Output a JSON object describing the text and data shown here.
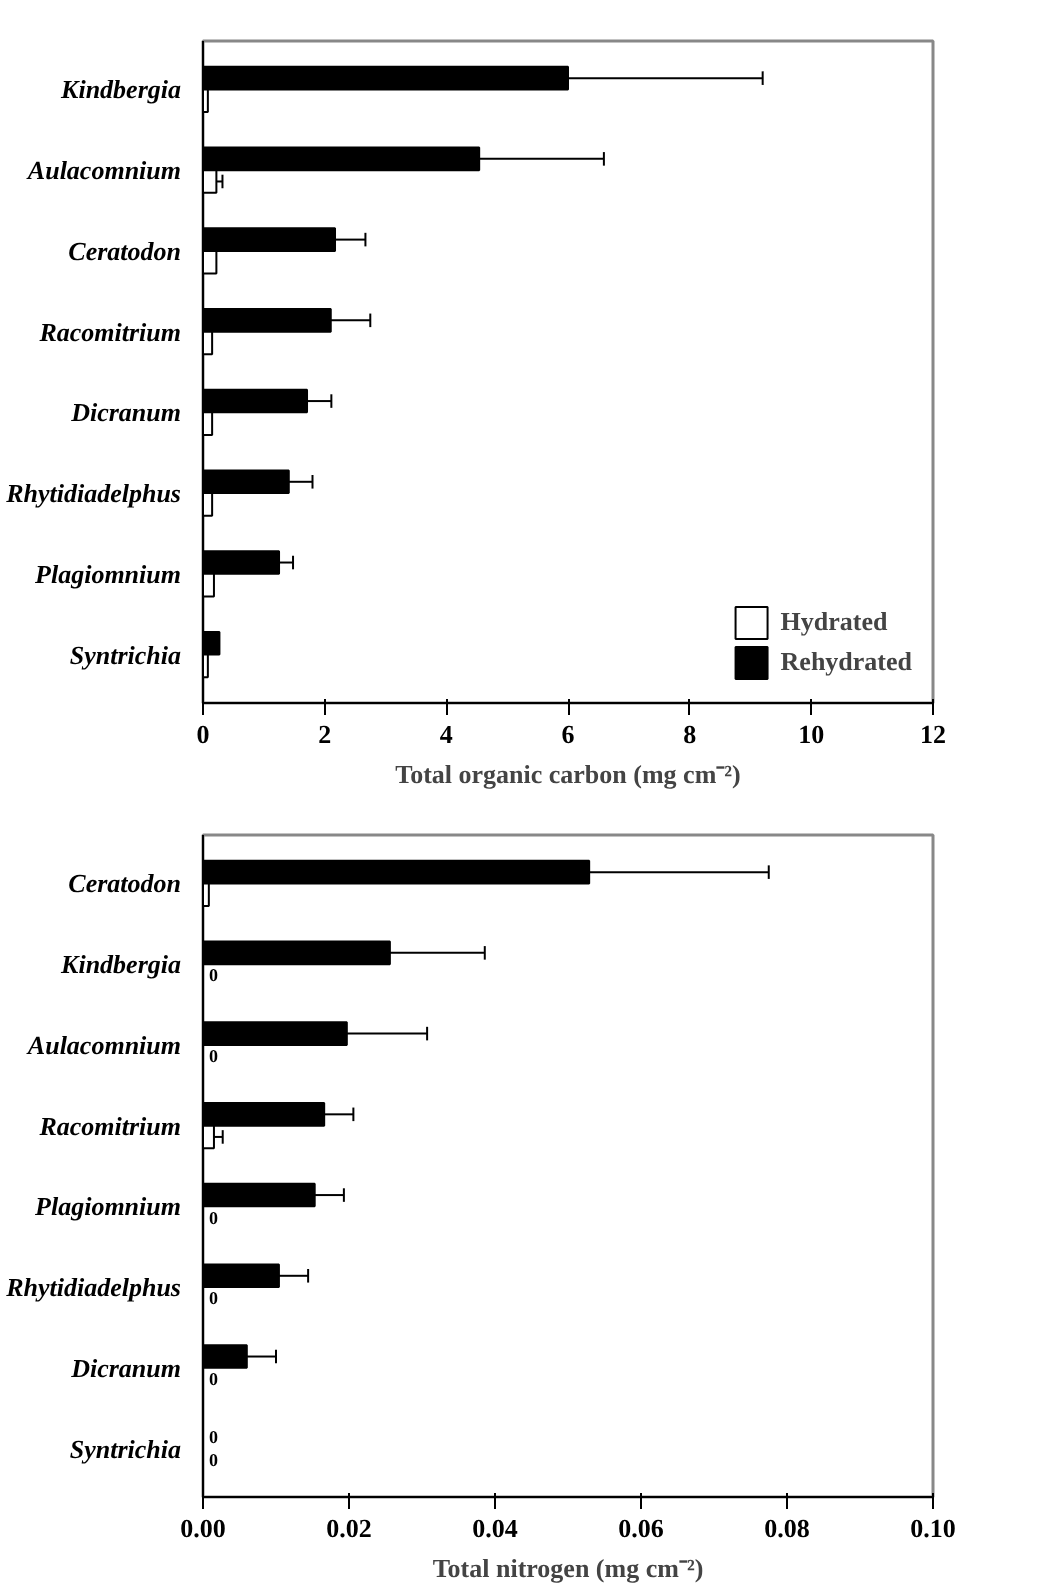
{
  "chart_data": [
    {
      "type": "bar",
      "orientation": "horizontal",
      "xlabel": "Total organic carbon (mg cm⁻²)",
      "categories": [
        "Kindbergia",
        "Aulacomnium",
        "Ceratodon",
        "Racomitrium",
        "Dicranum",
        "Rhytidiadelphus",
        "Plagiomnium",
        "Syntrichia"
      ],
      "xlim": [
        0,
        12
      ],
      "xticks": [
        0,
        2,
        4,
        6,
        8,
        10,
        12
      ],
      "legend": "bottom right",
      "grid": false,
      "series": [
        {
          "name": "Rehydrated",
          "color": "#000000",
          "values": [
            6.0,
            4.54,
            2.17,
            2.1,
            1.71,
            1.41,
            1.25,
            0.27
          ],
          "errors": [
            3.2,
            2.05,
            0.5,
            0.65,
            0.4,
            0.39,
            0.23,
            null
          ]
        },
        {
          "name": "Hydrated",
          "color": "#ffffff",
          "values": [
            0.08,
            0.22,
            0.22,
            0.15,
            0.15,
            0.15,
            0.18,
            0.08
          ],
          "errors": [
            null,
            0.1,
            null,
            null,
            null,
            null,
            null,
            null
          ]
        }
      ]
    },
    {
      "type": "bar",
      "orientation": "horizontal",
      "xlabel": "Total nitrogen (mg cm⁻²)",
      "categories": [
        "Ceratodon",
        "Kindbergia",
        "Aulacomnium",
        "Racomitrium",
        "Plagiomnium",
        "Rhytidiadelphus",
        "Dicranum",
        "Syntrichia"
      ],
      "xlim": [
        0,
        0.1
      ],
      "xticks": [
        {
          "value": 0,
          "label": "0.00"
        },
        0.02,
        0.04,
        0.06,
        0.08,
        {
          "value": 0.1,
          "label": "0.10"
        }
      ],
      "grid": false,
      "series": [
        {
          "color": "#000000",
          "values": [
            0.0529,
            0.0256,
            0.0197,
            0.0166,
            0.0153,
            0.0104,
            0.006,
            0
          ],
          "errors": [
            0.0246,
            0.013,
            0.011,
            0.004,
            0.004,
            0.004,
            0.004,
            null
          ],
          "value_labels": [
            null,
            null,
            null,
            null,
            null,
            null,
            null,
            "0"
          ]
        },
        {
          "color": "#ffffff",
          "values": [
            0.0008,
            0,
            0,
            0.0015,
            0,
            0,
            0,
            0
          ],
          "errors": [
            null,
            null,
            null,
            0.0012,
            null,
            null,
            null,
            null
          ],
          "value_labels": [
            null,
            "0",
            "0",
            null,
            "0",
            "0",
            "0",
            "0"
          ]
        }
      ]
    }
  ]
}
